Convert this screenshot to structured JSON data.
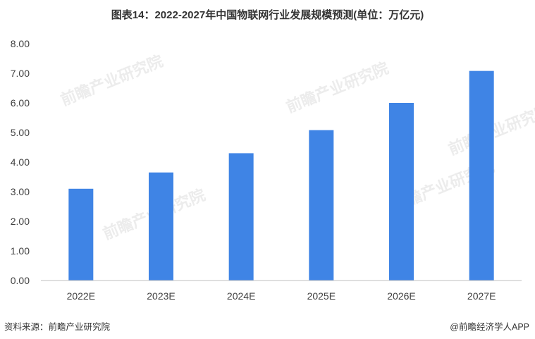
{
  "title": "图表14：2022-2027年中国物联网行业发展规模预测(单位：万亿元)",
  "chart_data": {
    "type": "bar",
    "categories": [
      "2022E",
      "2023E",
      "2024E",
      "2025E",
      "2026E",
      "2027E"
    ],
    "values": [
      3.1,
      3.65,
      4.3,
      5.08,
      6.0,
      7.08
    ],
    "ylim": [
      0,
      8
    ],
    "yticks": [
      "0.00",
      "1.00",
      "2.00",
      "3.00",
      "4.00",
      "5.00",
      "6.00",
      "7.00",
      "8.00"
    ],
    "bar_color": "#3f84e5",
    "grid": false,
    "legend": "none"
  },
  "footer": {
    "source": "资料来源：前瞻产业研究院",
    "credit": "@前瞻经济学人APP"
  },
  "watermark": "前瞻产业研究院"
}
